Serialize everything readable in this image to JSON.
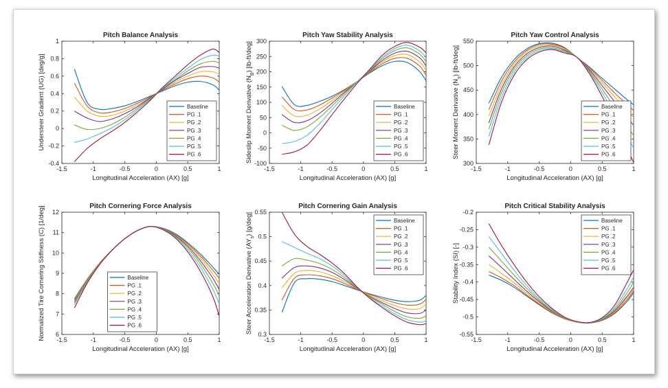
{
  "colors": {
    "series": [
      "#0072BD",
      "#D95319",
      "#EDB120",
      "#7E2F8E",
      "#77AC30",
      "#4DBEEE",
      "#A2142F"
    ]
  },
  "legend_labels": [
    "Baseline",
    "PG .1",
    "PG .2",
    "PG .3",
    "PG .4",
    "PG .5",
    "PG .6"
  ],
  "chart_data": [
    {
      "type": "line",
      "title": "Pitch Balance Analysis",
      "xlabel": "Longitudinal Acceleration (AX) [g]",
      "ylabel": "Understeer Gradient (UG) [deg/g]",
      "xlim": [
        -1.5,
        1
      ],
      "ylim": [
        -0.4,
        1
      ],
      "xticks": [
        "-1.5",
        "-1",
        "-0.5",
        "0",
        "0.5",
        "1"
      ],
      "yticks": [
        "-0.4",
        "-0.2",
        "0",
        "0.2",
        "0.4",
        "0.6",
        "0.8",
        "1"
      ],
      "legend_position": "lower-right",
      "x": [
        -1.3,
        -1.1,
        -0.9,
        -0.7,
        -0.5,
        -0.3,
        -0.1,
        0.1,
        0.3,
        0.5,
        0.7,
        0.9,
        1.0
      ],
      "series": [
        {
          "name": "Baseline",
          "values": [
            0.68,
            0.3,
            0.22,
            0.23,
            0.26,
            0.31,
            0.37,
            0.43,
            0.49,
            0.53,
            0.54,
            0.5,
            0.44
          ]
        },
        {
          "name": "PG .1",
          "values": [
            0.52,
            0.26,
            0.18,
            0.19,
            0.23,
            0.29,
            0.36,
            0.44,
            0.51,
            0.57,
            0.6,
            0.58,
            0.53
          ]
        },
        {
          "name": "PG .2",
          "values": [
            0.36,
            0.2,
            0.14,
            0.15,
            0.2,
            0.27,
            0.35,
            0.45,
            0.53,
            0.6,
            0.65,
            0.65,
            0.62
          ]
        },
        {
          "name": "PG .3",
          "values": [
            0.2,
            0.12,
            0.08,
            0.11,
            0.17,
            0.25,
            0.35,
            0.45,
            0.55,
            0.63,
            0.7,
            0.71,
            0.69
          ]
        },
        {
          "name": "PG .4",
          "values": [
            0.04,
            -0.01,
            0.0,
            0.05,
            0.13,
            0.23,
            0.34,
            0.46,
            0.56,
            0.66,
            0.74,
            0.77,
            0.75
          ]
        },
        {
          "name": "PG .5",
          "values": [
            -0.16,
            -0.12,
            -0.06,
            0.01,
            0.1,
            0.21,
            0.33,
            0.46,
            0.58,
            0.69,
            0.79,
            0.84,
            0.83
          ]
        },
        {
          "name": "PG .6",
          "values": [
            -0.38,
            -0.23,
            -0.12,
            -0.03,
            0.07,
            0.19,
            0.32,
            0.47,
            0.6,
            0.73,
            0.84,
            0.91,
            0.87
          ]
        }
      ]
    },
    {
      "type": "line",
      "title": "Pitch Yaw Stability Analysis",
      "xlabel": "Longitudinal Acceleration (AX) [g]",
      "ylabel": "Sideslip Moment Derivative (N_B) [lb-ft/deg]",
      "xlim": [
        -1.5,
        1
      ],
      "ylim": [
        -100,
        300
      ],
      "xticks": [
        "-1.5",
        "-1",
        "-0.5",
        "0",
        "0.5",
        "1"
      ],
      "yticks": [
        "-100",
        "-50",
        "0",
        "50",
        "100",
        "150",
        "200",
        "250",
        "300"
      ],
      "legend_position": "lower-right",
      "x": [
        -1.3,
        -1.1,
        -0.9,
        -0.7,
        -0.5,
        -0.3,
        -0.1,
        0.1,
        0.3,
        0.5,
        0.7,
        0.9,
        1.0
      ],
      "series": [
        {
          "name": "Baseline",
          "values": [
            152,
            92,
            90,
            103,
            120,
            142,
            168,
            196,
            220,
            234,
            230,
            200,
            170
          ]
        },
        {
          "name": "PG .1",
          "values": [
            118,
            76,
            75,
            91,
            114,
            140,
            168,
            198,
            226,
            244,
            244,
            218,
            188
          ]
        },
        {
          "name": "PG .2",
          "values": [
            90,
            55,
            58,
            78,
            106,
            137,
            168,
            200,
            232,
            253,
            256,
            232,
            205
          ]
        },
        {
          "name": "PG .3",
          "values": [
            60,
            34,
            40,
            64,
            97,
            133,
            168,
            202,
            237,
            261,
            267,
            245,
            219
          ]
        },
        {
          "name": "PG .4",
          "values": [
            25,
            8,
            20,
            50,
            88,
            128,
            168,
            204,
            243,
            269,
            278,
            257,
            233
          ]
        },
        {
          "name": "PG .5",
          "values": [
            -35,
            -28,
            -8,
            30,
            76,
            122,
            166,
            206,
            248,
            276,
            287,
            268,
            246
          ]
        },
        {
          "name": "PG .6",
          "values": [
            -70,
            -62,
            -40,
            6,
            60,
            112,
            162,
            208,
            254,
            283,
            296,
            280,
            262
          ]
        }
      ]
    },
    {
      "type": "line",
      "title": "Pitch Yaw Control Analysis",
      "xlabel": "Longitudinal Acceleration (AX) [g]",
      "ylabel": "Steer Moment Derivative (N_s) [lb-ft/deg]",
      "xlim": [
        -1.5,
        1
      ],
      "ylim": [
        300,
        550
      ],
      "xticks": [
        "-1.5",
        "-1",
        "-0.5",
        "0",
        "0.5",
        "1"
      ],
      "yticks": [
        "300",
        "350",
        "400",
        "450",
        "500",
        "550"
      ],
      "legend_position": "lower-right",
      "x": [
        -1.3,
        -1.1,
        -0.9,
        -0.7,
        -0.5,
        -0.3,
        -0.1,
        0.1,
        0.3,
        0.5,
        0.7,
        0.9,
        1.0
      ],
      "series": [
        {
          "name": "Baseline",
          "values": [
            423,
            476,
            512,
            534,
            545,
            546,
            537,
            517,
            497,
            474,
            452,
            430,
            420
          ]
        },
        {
          "name": "PG .1",
          "values": [
            410,
            468,
            507,
            531,
            543,
            544,
            536,
            517,
            495,
            470,
            444,
            420,
            408
          ]
        },
        {
          "name": "PG .2",
          "values": [
            397,
            460,
            502,
            528,
            540,
            542,
            534,
            517,
            493,
            465,
            436,
            408,
            394
          ]
        },
        {
          "name": "PG .3",
          "values": [
            383,
            452,
            497,
            524,
            537,
            540,
            532,
            517,
            491,
            459,
            426,
            394,
            378
          ]
        },
        {
          "name": "PG .4",
          "values": [
            370,
            444,
            492,
            520,
            534,
            537,
            530,
            517,
            488,
            452,
            414,
            376,
            357
          ]
        },
        {
          "name": "PG .5",
          "values": [
            355,
            435,
            486,
            516,
            531,
            535,
            528,
            517,
            486,
            445,
            400,
            354,
            332
          ]
        },
        {
          "name": "PG .6",
          "values": [
            338,
            425,
            480,
            512,
            528,
            533,
            526,
            517,
            483,
            437,
            384,
            329,
            302
          ]
        }
      ]
    },
    {
      "type": "line",
      "title": "Pitch Cornering Force  Analysis",
      "xlabel": "Longitudinal Acceleration (AX) [g]",
      "ylabel": "Normalized Tire Cornering Stiffness (C) [1/deg]",
      "xlim": [
        -1.5,
        1
      ],
      "ylim": [
        6,
        12
      ],
      "xticks": [
        "-1.5",
        "-1",
        "-0.5",
        "0",
        "0.5",
        "1"
      ],
      "yticks": [
        "6",
        "7",
        "8",
        "9",
        "10",
        "11",
        "12"
      ],
      "legend_position": "lower-center",
      "x": [
        -1.3,
        -1.1,
        -0.9,
        -0.7,
        -0.5,
        -0.3,
        -0.1,
        0.1,
        0.3,
        0.5,
        0.7,
        0.9,
        1.0
      ],
      "series": [
        {
          "name": "Baseline",
          "values": [
            7.75,
            8.7,
            9.5,
            10.15,
            10.7,
            11.1,
            11.3,
            11.22,
            10.95,
            10.5,
            9.95,
            9.3,
            8.95
          ]
        },
        {
          "name": "PG .1",
          "values": [
            7.7,
            8.68,
            9.5,
            10.15,
            10.7,
            11.1,
            11.3,
            11.2,
            10.92,
            10.45,
            9.85,
            9.15,
            8.75
          ]
        },
        {
          "name": "PG .2",
          "values": [
            7.65,
            8.65,
            9.48,
            10.15,
            10.7,
            11.1,
            11.3,
            11.19,
            10.89,
            10.4,
            9.75,
            8.95,
            8.5
          ]
        },
        {
          "name": "PG .3",
          "values": [
            7.6,
            8.62,
            9.47,
            10.15,
            10.7,
            11.1,
            11.3,
            11.18,
            10.86,
            10.33,
            9.62,
            8.75,
            8.2
          ]
        },
        {
          "name": "PG .4",
          "values": [
            7.55,
            8.6,
            9.46,
            10.15,
            10.7,
            11.1,
            11.3,
            11.17,
            10.82,
            10.25,
            9.48,
            8.5,
            7.9
          ]
        },
        {
          "name": "PG .5",
          "values": [
            7.45,
            8.55,
            9.45,
            10.15,
            10.7,
            11.1,
            11.3,
            11.16,
            10.78,
            10.15,
            9.3,
            8.2,
            7.5
          ]
        },
        {
          "name": "PG .6",
          "values": [
            7.3,
            8.5,
            9.43,
            10.14,
            10.7,
            11.1,
            11.3,
            11.15,
            10.74,
            10.05,
            9.1,
            7.85,
            6.9
          ]
        }
      ]
    },
    {
      "type": "line",
      "title": "Pitch Cornering Gain Analysis",
      "xlabel": "Longitudinal Acceleration (AX) [g]",
      "ylabel": "Steer Acceleration Derivative (AY_s) [g/deg]",
      "xlim": [
        -1.5,
        1
      ],
      "ylim": [
        0.3,
        0.55
      ],
      "xticks": [
        "-1.5",
        "-1",
        "-0.5",
        "0",
        "0.5",
        "1"
      ],
      "yticks": [
        "0.3",
        "0.35",
        "0.4",
        "0.45",
        "0.5",
        "0.55"
      ],
      "legend_position": "upper-right",
      "x": [
        -1.3,
        -1.1,
        -0.9,
        -0.7,
        -0.5,
        -0.3,
        -0.1,
        0.1,
        0.3,
        0.5,
        0.7,
        0.9,
        1.0
      ],
      "series": [
        {
          "name": "Baseline",
          "values": [
            0.345,
            0.406,
            0.414,
            0.413,
            0.408,
            0.4,
            0.391,
            0.383,
            0.376,
            0.37,
            0.367,
            0.37,
            0.38
          ]
        },
        {
          "name": "PG .1",
          "values": [
            0.37,
            0.415,
            0.422,
            0.42,
            0.414,
            0.404,
            0.392,
            0.382,
            0.373,
            0.365,
            0.36,
            0.362,
            0.372
          ]
        },
        {
          "name": "PG .2",
          "values": [
            0.395,
            0.425,
            0.431,
            0.428,
            0.42,
            0.408,
            0.393,
            0.38,
            0.369,
            0.359,
            0.352,
            0.353,
            0.362
          ]
        },
        {
          "name": "PG .3",
          "values": [
            0.415,
            0.437,
            0.44,
            0.436,
            0.427,
            0.412,
            0.394,
            0.378,
            0.365,
            0.353,
            0.344,
            0.343,
            0.35
          ]
        },
        {
          "name": "PG .4",
          "values": [
            0.44,
            0.455,
            0.452,
            0.445,
            0.433,
            0.416,
            0.395,
            0.377,
            0.362,
            0.347,
            0.336,
            0.333,
            0.338
          ]
        },
        {
          "name": "PG .5",
          "values": [
            0.49,
            0.478,
            0.466,
            0.455,
            0.44,
            0.42,
            0.396,
            0.375,
            0.358,
            0.342,
            0.33,
            0.325,
            0.328
          ]
        },
        {
          "name": "PG .6",
          "values": [
            0.55,
            0.505,
            0.48,
            0.464,
            0.446,
            0.424,
            0.397,
            0.374,
            0.355,
            0.338,
            0.325,
            0.32,
            0.322
          ]
        }
      ]
    },
    {
      "type": "line",
      "title": "Pitch Critical Stability Analysis",
      "xlabel": "Longitudinal Acceleration (AX) [g]",
      "ylabel": "Stability Index (SI) [-]",
      "xlim": [
        -1.5,
        1
      ],
      "ylim": [
        -0.55,
        -0.2
      ],
      "xticks": [
        "-1.5",
        "-1",
        "-0.5",
        "0",
        "0.5",
        "1"
      ],
      "yticks": [
        "-0.55",
        "-0.5",
        "-0.45",
        "-0.4",
        "-0.35",
        "-0.3",
        "-0.25",
        "-0.2"
      ],
      "legend_position": "upper-right",
      "x": [
        -1.3,
        -1.1,
        -0.9,
        -0.7,
        -0.5,
        -0.3,
        -0.1,
        0.1,
        0.3,
        0.5,
        0.7,
        0.9,
        1.0
      ],
      "series": [
        {
          "name": "Baseline",
          "values": [
            -0.38,
            -0.395,
            -0.415,
            -0.44,
            -0.465,
            -0.488,
            -0.505,
            -0.515,
            -0.517,
            -0.51,
            -0.49,
            -0.455,
            -0.43
          ]
        },
        {
          "name": "PG .1",
          "values": [
            -0.37,
            -0.388,
            -0.41,
            -0.437,
            -0.463,
            -0.487,
            -0.505,
            -0.515,
            -0.517,
            -0.509,
            -0.488,
            -0.45,
            -0.425
          ]
        },
        {
          "name": "PG .2",
          "values": [
            -0.35,
            -0.375,
            -0.402,
            -0.432,
            -0.46,
            -0.485,
            -0.504,
            -0.515,
            -0.517,
            -0.508,
            -0.485,
            -0.445,
            -0.42
          ]
        },
        {
          "name": "PG .3",
          "values": [
            -0.325,
            -0.358,
            -0.392,
            -0.426,
            -0.456,
            -0.483,
            -0.503,
            -0.514,
            -0.517,
            -0.507,
            -0.482,
            -0.44,
            -0.415
          ]
        },
        {
          "name": "PG .4",
          "values": [
            -0.3,
            -0.34,
            -0.38,
            -0.418,
            -0.452,
            -0.481,
            -0.502,
            -0.514,
            -0.516,
            -0.506,
            -0.478,
            -0.43,
            -0.4
          ]
        },
        {
          "name": "PG .5",
          "values": [
            -0.27,
            -0.318,
            -0.366,
            -0.41,
            -0.448,
            -0.478,
            -0.501,
            -0.514,
            -0.516,
            -0.504,
            -0.473,
            -0.418,
            -0.385
          ]
        },
        {
          "name": "PG .6",
          "values": [
            -0.233,
            -0.295,
            -0.35,
            -0.4,
            -0.442,
            -0.475,
            -0.5,
            -0.513,
            -0.516,
            -0.502,
            -0.466,
            -0.4,
            -0.365
          ]
        }
      ]
    }
  ]
}
